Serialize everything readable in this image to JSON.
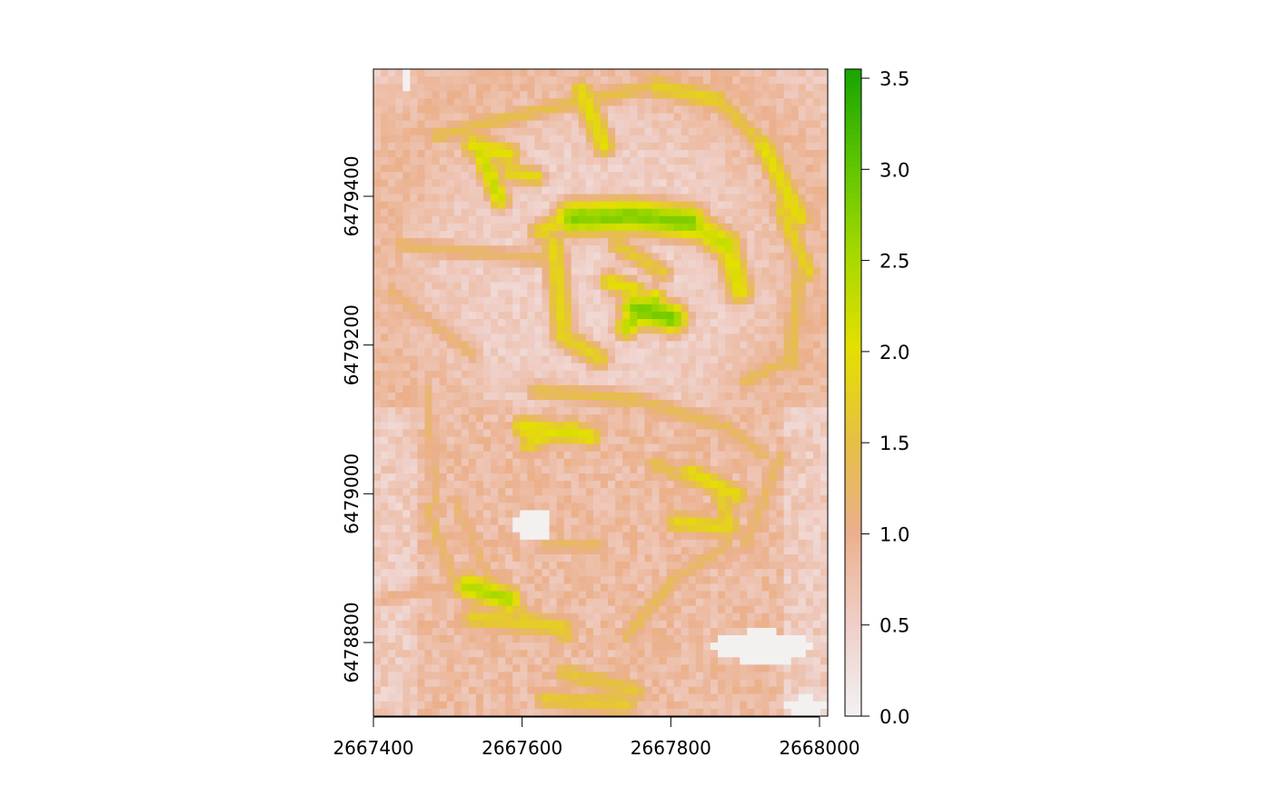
{
  "chart_data": {
    "type": "heatmap",
    "title": "",
    "xlabel": "",
    "ylabel": "",
    "xlim": [
      2667400,
      2668010
    ],
    "ylim": [
      6478700,
      6479570
    ],
    "x_ticks": [
      2667400,
      2667600,
      2667800,
      2668000
    ],
    "x_tick_labels": [
      "2667400",
      "2667600",
      "2667800",
      "2668000"
    ],
    "y_ticks": [
      6478800,
      6479000,
      6479200,
      6479400
    ],
    "y_tick_labels": [
      "6478800",
      "6479000",
      "6479200",
      "6479400"
    ],
    "legend": {
      "placement": "right",
      "range": [
        0,
        3.55
      ],
      "ticks": [
        0.0,
        0.5,
        1.0,
        1.5,
        2.0,
        2.5,
        3.0,
        3.5
      ],
      "tick_labels": [
        "0.0",
        "0.5",
        "1.0",
        "1.5",
        "2.0",
        "2.5",
        "3.0",
        "3.5"
      ],
      "colors": [
        "#f2f2f2",
        "#efcfc8",
        "#ebb08c",
        "#e6c042",
        "#e4e000",
        "#a6d800",
        "#5cc400",
        "#18a400"
      ]
    },
    "grid": false
  }
}
